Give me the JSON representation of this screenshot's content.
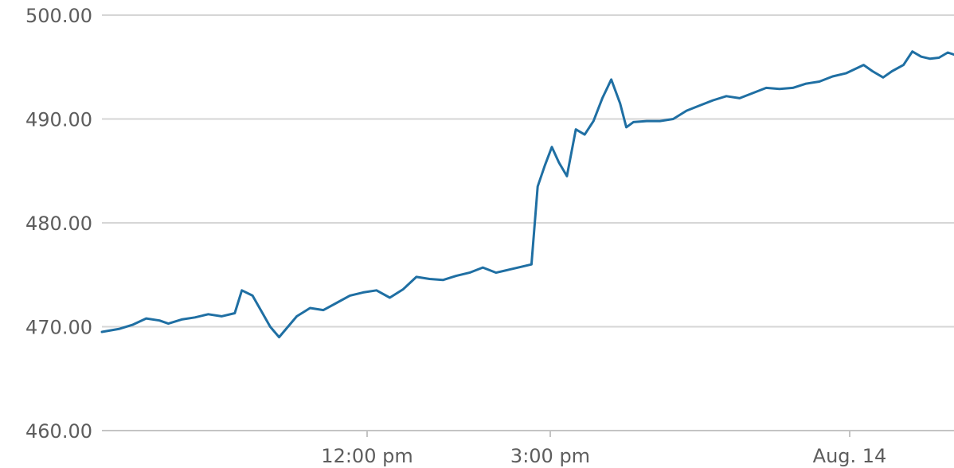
{
  "chart_data": {
    "type": "line",
    "title": "",
    "xlabel": "",
    "ylabel": "",
    "ylim": [
      460,
      500
    ],
    "y_ticks": [
      "500.00",
      "490.00",
      "480.00",
      "470.00",
      "460.00"
    ],
    "x_ticks": [
      "12:00 pm",
      "3:00 pm",
      "Aug. 14"
    ],
    "grid": true,
    "legend": "none",
    "series_color": "#1f6fa3",
    "series": [
      {
        "points": [
          [
            0.0,
            469.5
          ],
          [
            0.2,
            469.8
          ],
          [
            0.35,
            470.2
          ],
          [
            0.5,
            470.8
          ],
          [
            0.65,
            470.6
          ],
          [
            0.75,
            470.3
          ],
          [
            0.9,
            470.7
          ],
          [
            1.05,
            470.9
          ],
          [
            1.2,
            471.2
          ],
          [
            1.35,
            471.0
          ],
          [
            1.5,
            471.3
          ],
          [
            1.58,
            473.5
          ],
          [
            1.7,
            473.0
          ],
          [
            1.8,
            471.5
          ],
          [
            1.9,
            470.0
          ],
          [
            2.0,
            469.0
          ],
          [
            2.1,
            470.0
          ],
          [
            2.2,
            471.0
          ],
          [
            2.35,
            471.8
          ],
          [
            2.5,
            471.6
          ],
          [
            2.65,
            472.3
          ],
          [
            2.8,
            473.0
          ],
          [
            2.95,
            473.3
          ],
          [
            3.1,
            473.5
          ],
          [
            3.25,
            472.8
          ],
          [
            3.4,
            473.6
          ],
          [
            3.55,
            474.8
          ],
          [
            3.7,
            474.6
          ],
          [
            3.85,
            474.5
          ],
          [
            4.0,
            474.9
          ],
          [
            4.15,
            475.2
          ],
          [
            4.3,
            475.7
          ],
          [
            4.45,
            475.2
          ],
          [
            4.6,
            475.5
          ],
          [
            4.75,
            475.8
          ],
          [
            4.85,
            476.0
          ],
          [
            4.92,
            483.5
          ],
          [
            5.0,
            485.5
          ],
          [
            5.08,
            487.3
          ],
          [
            5.16,
            485.8
          ],
          [
            5.25,
            484.5
          ],
          [
            5.35,
            489.0
          ],
          [
            5.45,
            488.5
          ],
          [
            5.55,
            489.8
          ],
          [
            5.65,
            492.0
          ],
          [
            5.75,
            493.8
          ],
          [
            5.85,
            491.5
          ],
          [
            5.92,
            489.2
          ],
          [
            6.0,
            489.7
          ],
          [
            6.15,
            489.8
          ],
          [
            6.3,
            489.8
          ],
          [
            6.45,
            490.0
          ],
          [
            6.6,
            490.8
          ],
          [
            6.75,
            491.3
          ],
          [
            6.9,
            491.8
          ],
          [
            7.05,
            492.2
          ],
          [
            7.2,
            492.0
          ],
          [
            7.35,
            492.5
          ],
          [
            7.5,
            493.0
          ],
          [
            7.65,
            492.9
          ],
          [
            7.8,
            493.0
          ],
          [
            7.95,
            493.4
          ],
          [
            8.1,
            493.6
          ],
          [
            8.25,
            494.1
          ],
          [
            8.4,
            494.4
          ],
          [
            8.5,
            494.8
          ],
          [
            8.6,
            495.2
          ],
          [
            8.7,
            494.6
          ],
          [
            8.82,
            494.0
          ],
          [
            8.92,
            494.6
          ],
          [
            9.05,
            495.2
          ],
          [
            9.15,
            496.5
          ],
          [
            9.25,
            496.0
          ],
          [
            9.35,
            495.8
          ],
          [
            9.45,
            495.9
          ],
          [
            9.55,
            496.4
          ],
          [
            9.62,
            496.2
          ]
        ]
      }
    ]
  }
}
